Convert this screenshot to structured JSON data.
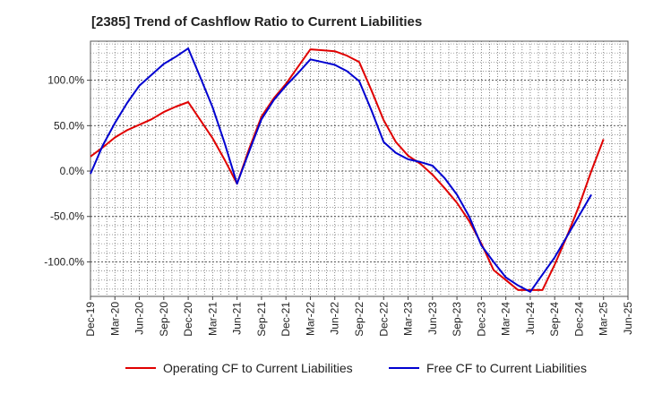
{
  "chart_data": {
    "type": "line",
    "title": "[2385]  Trend of Cashflow Ratio to Current Liabilities",
    "xlabel": "",
    "ylabel": "",
    "x_tick_labels": [
      "Dec-19",
      "Mar-20",
      "Jun-20",
      "Sep-20",
      "Dec-20",
      "Mar-21",
      "Jun-21",
      "Sep-21",
      "Dec-21",
      "Mar-22",
      "Jun-22",
      "Sep-22",
      "Dec-22",
      "Mar-23",
      "Jun-23",
      "Sep-23",
      "Dec-23",
      "Mar-24",
      "Jun-24",
      "Sep-24",
      "Dec-24",
      "Mar-25",
      "Jun-25"
    ],
    "y_ticks": [
      100,
      50,
      0,
      -50,
      -100
    ],
    "y_tick_labels": [
      "100.0%",
      "50.0%",
      "0.0%",
      "-50.0%",
      "-100.0%"
    ],
    "ylim": [
      -138,
      143
    ],
    "grid": true,
    "legend_position": "bottom",
    "series": [
      {
        "name": "Operating CF to Current Liabilities",
        "color": "#e00000",
        "values": [
          16,
          26,
          37,
          45,
          51,
          57,
          65,
          71,
          76,
          56,
          36,
          12,
          -14,
          25,
          60,
          80,
          96,
          115,
          134,
          133,
          132,
          127,
          120,
          89,
          56,
          32,
          17,
          8,
          -4,
          -19,
          -35,
          -55,
          -80,
          -109,
          -120,
          -131,
          -131,
          -131,
          -103,
          -72,
          -38,
          0,
          35
        ]
      },
      {
        "name": "Free CF to Current Liabilities",
        "color": "#0000d0",
        "values": [
          -3,
          28,
          53,
          75,
          94,
          106,
          118,
          126,
          135,
          103,
          70,
          30,
          -14,
          22,
          57,
          78,
          94,
          108,
          123,
          120,
          117,
          110,
          99,
          67,
          32,
          20,
          13,
          10,
          6,
          -8,
          -26,
          -50,
          -82,
          -100,
          -117,
          -126,
          -133,
          -114,
          -95,
          -72,
          -49,
          -26
        ]
      }
    ]
  }
}
